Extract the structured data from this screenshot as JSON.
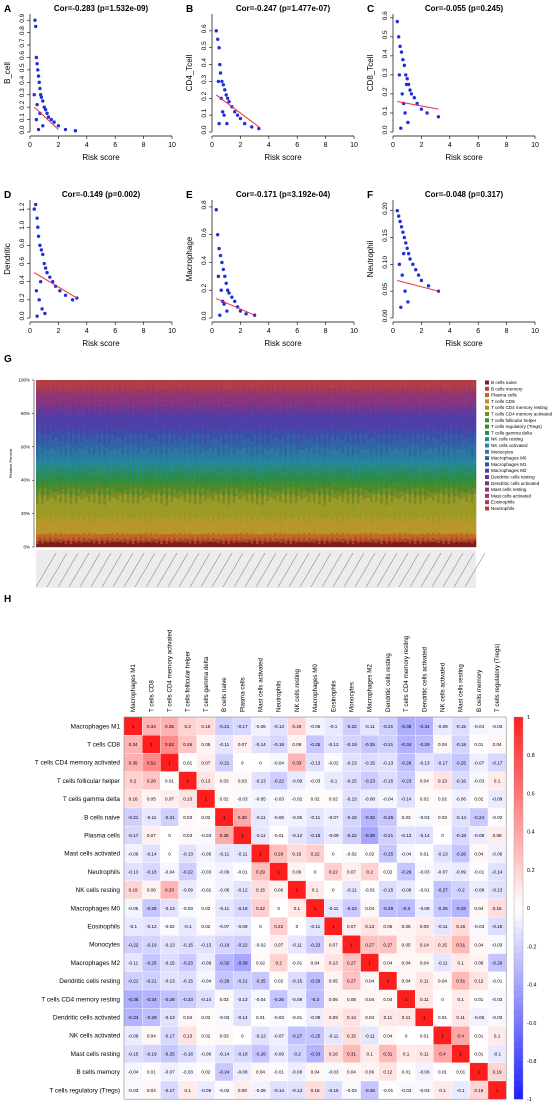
{
  "chart_data": [
    {
      "type": "scatter",
      "panel": "A",
      "title": "Cor=-0.283 (p=1.532e-09)",
      "xlabel": "Risk score",
      "ylabel": "B_cell",
      "xlim": [
        0,
        10
      ],
      "ylim": [
        0,
        0.95
      ],
      "xticks": [
        "0",
        "2",
        "4",
        "6",
        "8",
        "10"
      ],
      "yticks": [
        "0.0",
        "0.1",
        "0.2",
        "0.3",
        "0.4",
        "0.5",
        "0.6",
        "0.7",
        "0.8",
        "0.9"
      ],
      "points": {
        "x": [
          0.35,
          0.4,
          0.45,
          0.5,
          0.55,
          0.6,
          0.65,
          0.7,
          0.75,
          0.8,
          0.9,
          1.0,
          1.1,
          1.2,
          1.3,
          1.5,
          1.7,
          2.0,
          2.5,
          3.2,
          0.3,
          0.5,
          0.7,
          0.9,
          0.45,
          0.6
        ],
        "y": [
          0.9,
          0.85,
          0.6,
          0.55,
          0.5,
          0.45,
          0.4,
          0.35,
          0.3,
          0.28,
          0.25,
          0.2,
          0.18,
          0.15,
          0.12,
          0.1,
          0.08,
          0.05,
          0.02,
          0.01,
          0.3,
          0.22,
          0.15,
          0.05,
          0.1,
          0.02
        ]
      },
      "trend": {
        "x": [
          0.3,
          2.0
        ],
        "y": [
          0.2,
          0.02
        ]
      }
    },
    {
      "type": "scatter",
      "panel": "B",
      "title": "Cor=-0.247 (p=1.477e-07)",
      "xlabel": "Risk score",
      "ylabel": "CD4_Tcell",
      "xlim": [
        0,
        10
      ],
      "ylim": [
        0,
        0.7
      ],
      "xticks": [
        "0",
        "2",
        "4",
        "6",
        "8",
        "10"
      ],
      "yticks": [
        "0.0",
        "0.1",
        "0.2",
        "0.3",
        "0.4",
        "0.5",
        "0.6"
      ],
      "points": {
        "x": [
          0.3,
          0.4,
          0.5,
          0.55,
          0.6,
          0.7,
          0.8,
          0.9,
          1.0,
          1.1,
          1.2,
          1.4,
          1.6,
          1.8,
          2.0,
          2.3,
          2.8,
          3.3,
          0.45,
          0.65,
          0.85,
          1.05,
          0.5,
          0.75
        ],
        "y": [
          0.6,
          0.55,
          0.5,
          0.4,
          0.35,
          0.3,
          0.28,
          0.25,
          0.22,
          0.2,
          0.18,
          0.15,
          0.12,
          0.1,
          0.08,
          0.05,
          0.03,
          0.02,
          0.3,
          0.2,
          0.1,
          0.05,
          0.05,
          0.12
        ]
      },
      "trend": {
        "x": [
          0.3,
          3.3
        ],
        "y": [
          0.22,
          0.03
        ]
      }
    },
    {
      "type": "scatter",
      "panel": "C",
      "title": "Cor=-0.055 (p=0.245)",
      "xlabel": "Risk score",
      "ylabel": "CD8_Tcell",
      "xlim": [
        0,
        10
      ],
      "ylim": [
        0,
        0.62
      ],
      "xticks": [
        "0",
        "2",
        "4",
        "6",
        "8",
        "10"
      ],
      "yticks": [
        "0.0",
        "0.1",
        "0.2",
        "0.3",
        "0.4",
        "0.5",
        "0.6"
      ],
      "points": {
        "x": [
          0.3,
          0.4,
          0.5,
          0.6,
          0.7,
          0.8,
          0.9,
          1.0,
          1.1,
          1.2,
          1.3,
          1.5,
          1.7,
          2.0,
          2.4,
          3.2,
          0.45,
          0.65,
          0.85,
          1.05,
          0.55,
          0.75,
          0.95
        ],
        "y": [
          0.58,
          0.5,
          0.45,
          0.42,
          0.38,
          0.35,
          0.3,
          0.28,
          0.25,
          0.22,
          0.2,
          0.18,
          0.15,
          0.12,
          0.1,
          0.08,
          0.3,
          0.2,
          0.1,
          0.05,
          0.02,
          0.15,
          0.25
        ]
      },
      "trend": {
        "x": [
          0.3,
          3.2
        ],
        "y": [
          0.16,
          0.12
        ]
      }
    },
    {
      "type": "scatter",
      "panel": "D",
      "title": "Cor=-0.149 (p=0.002)",
      "xlabel": "Risk score",
      "ylabel": "Dendritic",
      "xlim": [
        0,
        10
      ],
      "ylim": [
        0,
        1.3
      ],
      "xticks": [
        "0",
        "2",
        "4",
        "6",
        "8",
        "10"
      ],
      "yticks": [
        "0.0",
        "0.2",
        "0.4",
        "0.6",
        "0.8",
        "1.0",
        "1.2"
      ],
      "points": {
        "x": [
          0.3,
          0.4,
          0.5,
          0.55,
          0.6,
          0.7,
          0.8,
          0.9,
          1.0,
          1.1,
          1.2,
          1.4,
          1.6,
          1.8,
          2.1,
          2.5,
          3.0,
          3.3,
          0.45,
          0.65,
          0.85,
          1.05,
          0.5,
          0.75
        ],
        "y": [
          1.2,
          1.25,
          1.1,
          1.0,
          0.9,
          0.8,
          0.75,
          0.7,
          0.6,
          0.55,
          0.5,
          0.45,
          0.4,
          0.35,
          0.3,
          0.25,
          0.2,
          0.22,
          0.3,
          0.2,
          0.1,
          0.05,
          0.02,
          0.4
        ]
      },
      "trend": {
        "x": [
          0.3,
          3.3
        ],
        "y": [
          0.5,
          0.22
        ]
      }
    },
    {
      "type": "scatter",
      "panel": "E",
      "title": "Cor=-0.171 (p=3.192e-04)",
      "xlabel": "Risk score",
      "ylabel": "Macrophage",
      "xlim": [
        0,
        10
      ],
      "ylim": [
        0,
        0.85
      ],
      "xticks": [
        "0",
        "2",
        "4",
        "6",
        "8",
        "10"
      ],
      "yticks": [
        "0.0",
        "0.2",
        "0.4",
        "0.6",
        "0.8"
      ],
      "points": {
        "x": [
          0.3,
          0.4,
          0.5,
          0.6,
          0.7,
          0.8,
          0.9,
          1.0,
          1.1,
          1.2,
          1.4,
          1.6,
          1.8,
          2.0,
          2.4,
          3.0,
          0.45,
          0.65,
          0.85,
          1.05,
          0.55,
          0.75
        ],
        "y": [
          0.78,
          0.6,
          0.5,
          0.45,
          0.4,
          0.35,
          0.3,
          0.25,
          0.2,
          0.18,
          0.15,
          0.12,
          0.08,
          0.05,
          0.03,
          0.02,
          0.3,
          0.2,
          0.1,
          0.05,
          0.02,
          0.12
        ]
      },
      "trend": {
        "x": [
          0.3,
          3.0
        ],
        "y": [
          0.14,
          0.02
        ]
      }
    },
    {
      "type": "scatter",
      "panel": "F",
      "title": "Cor=-0.048 (p=0.317)",
      "xlabel": "Risk score",
      "ylabel": "Neutrophil",
      "xlim": [
        0,
        10
      ],
      "ylim": [
        0,
        0.22
      ],
      "xticks": [
        "0",
        "2",
        "4",
        "6",
        "8",
        "10"
      ],
      "yticks": [
        "0.00",
        "0.05",
        "0.10",
        "0.15",
        "0.20"
      ],
      "points": {
        "x": [
          0.3,
          0.4,
          0.5,
          0.6,
          0.7,
          0.8,
          0.9,
          1.0,
          1.1,
          1.2,
          1.4,
          1.6,
          1.8,
          2.0,
          2.5,
          3.2,
          0.45,
          0.65,
          0.85,
          1.05,
          0.55,
          0.75
        ],
        "y": [
          0.2,
          0.19,
          0.18,
          0.17,
          0.16,
          0.15,
          0.14,
          0.13,
          0.12,
          0.11,
          0.1,
          0.09,
          0.08,
          0.07,
          0.06,
          0.05,
          0.1,
          0.08,
          0.05,
          0.03,
          0.02,
          0.12
        ]
      },
      "trend": {
        "x": [
          0.3,
          3.2
        ],
        "y": [
          0.07,
          0.05
        ]
      }
    },
    {
      "type": "area",
      "panel": "G",
      "ylabel": "Relative Percent",
      "ylim": [
        0,
        100
      ],
      "yticks": [
        "0%",
        "20%",
        "40%",
        "60%",
        "80%",
        "100%"
      ],
      "legend": "right",
      "series": [
        {
          "name": "B cells naive",
          "color": "#7b1e1e",
          "share": 3
        },
        {
          "name": "B cells memory",
          "color": "#b2442a",
          "share": 2
        },
        {
          "name": "Plasma cells",
          "color": "#c06a20",
          "share": 3
        },
        {
          "name": "T cells CD8",
          "color": "#b8962a",
          "share": 9
        },
        {
          "name": "T cells CD4 memory resting",
          "color": "#9c9a26",
          "share": 12
        },
        {
          "name": "T cells CD4 memory activated",
          "color": "#7a8c24",
          "share": 4
        },
        {
          "name": "T cells follicular helper",
          "color": "#4e8a2a",
          "share": 5
        },
        {
          "name": "T cells regulatory (Tregs)",
          "color": "#2f8c3c",
          "share": 4
        },
        {
          "name": "T cells gamma delta",
          "color": "#2a8a5a",
          "share": 3
        },
        {
          "name": "NK cells resting",
          "color": "#268a7a",
          "share": 4
        },
        {
          "name": "NK cells activated",
          "color": "#24879a",
          "share": 3
        },
        {
          "name": "Monocytes",
          "color": "#2a7aa0",
          "share": 6
        },
        {
          "name": "Macrophages M0",
          "color": "#3064a6",
          "share": 7
        },
        {
          "name": "Macrophages M1",
          "color": "#3c4ea8",
          "share": 5
        },
        {
          "name": "Macrophages M2",
          "color": "#4e3ea6",
          "share": 10
        },
        {
          "name": "Dendritic cells resting",
          "color": "#663898",
          "share": 3
        },
        {
          "name": "Dendritic cells activated",
          "color": "#7a348c",
          "share": 3
        },
        {
          "name": "Mast cells resting",
          "color": "#8c3478",
          "share": 6
        },
        {
          "name": "Mast cells activated",
          "color": "#9c3464",
          "share": 2
        },
        {
          "name": "Eosinophils",
          "color": "#a83a54",
          "share": 2
        },
        {
          "name": "Neutrophils",
          "color": "#b23e44",
          "share": 4
        }
      ]
    },
    {
      "type": "heatmap",
      "panel": "H",
      "labels": [
        "Macrophages M1",
        "T cells CD8",
        "T cells CD4 memory activated",
        "T cells follicular helper",
        "T cells gamma delta",
        "B cells naive",
        "Plasma cells",
        "Mast cells activated",
        "Neutrophils",
        "NK cells resting",
        "Macrophages M0",
        "Eosinophils",
        "Monocytes",
        "Macrophages M2",
        "Dendritic cells resting",
        "T cells CD4 memory resting",
        "Dendritic cells activated",
        "NK cells activated",
        "Mast cells resting",
        "B cells memory",
        "T cells regulatory (Tregs)"
      ],
      "colorbar_ticks": [
        "1",
        "0.8",
        "0.6",
        "0.4",
        "0.2",
        "0",
        "-0.2",
        "-0.4",
        "-0.6",
        "-0.8",
        "-1"
      ],
      "colorbar_values": [
        1,
        0.8,
        0.6,
        0.4,
        0.2,
        0,
        -0.2,
        -0.4,
        -0.6,
        -0.8,
        -1
      ],
      "matrix": [
        [
          1,
          0.34,
          0.35,
          0.2,
          0.16,
          -0.21,
          -0.17,
          -0.06,
          -0.13,
          0.19,
          -0.05,
          -0.1,
          -0.22,
          -0.11,
          -0.21,
          -0.36,
          -0.34,
          -0.09,
          -0.15,
          -0.04,
          -0.03
        ],
        [
          0.34,
          1,
          0.52,
          0.26,
          0.05,
          -0.11,
          0.07,
          -0.14,
          -0.18,
          0.06,
          -0.25,
          -0.12,
          -0.19,
          -0.25,
          -0.21,
          -0.34,
          -0.29,
          0.04,
          -0.19,
          0.01,
          0.04
        ],
        [
          0.35,
          0.52,
          1,
          0.01,
          0.07,
          -0.21,
          0,
          0,
          -0.04,
          0.33,
          -0.13,
          -0.02,
          -0.13,
          -0.15,
          -0.13,
          -0.28,
          -0.13,
          -0.17,
          -0.25,
          -0.07,
          -0.17
        ],
        [
          0.2,
          0.26,
          0.01,
          1,
          0.13,
          0.03,
          0.03,
          -0.13,
          -0.22,
          -0.09,
          -0.03,
          -0.1,
          -0.15,
          -0.23,
          -0.15,
          -0.23,
          0.04,
          0.13,
          -0.16,
          -0.03,
          0.1
        ],
        [
          0.16,
          0.05,
          0.07,
          0.13,
          1,
          0.02,
          -0.03,
          -0.05,
          -0.03,
          -0.02,
          0.02,
          0.02,
          -0.13,
          -0.08,
          -0.04,
          -0.14,
          0.02,
          0.02,
          -0.06,
          0.02,
          -0.09
        ],
        [
          -0.21,
          -0.11,
          -0.21,
          0.03,
          0.02,
          1,
          0.38,
          -0.11,
          -0.06,
          -0.06,
          -0.11,
          -0.07,
          -0.19,
          -0.32,
          -0.26,
          0.03,
          -0.03,
          0.03,
          -0.14,
          -0.24,
          -0.02
        ],
        [
          -0.17,
          0.07,
          0,
          0.03,
          -0.03,
          0.38,
          1,
          -0.11,
          -0.01,
          -0.12,
          -0.18,
          -0.09,
          -0.22,
          -0.39,
          -0.21,
          -0.13,
          -0.14,
          0,
          -0.18,
          -0.08,
          0.08
        ],
        [
          -0.06,
          -0.14,
          0,
          -0.13,
          -0.05,
          -0.11,
          -0.11,
          1,
          0.29,
          0.15,
          0.22,
          0,
          -0.02,
          0.02,
          -0.25,
          -0.04,
          0.01,
          -0.13,
          -0.26,
          0.04,
          -0.06
        ],
        [
          -0.13,
          -0.18,
          -0.04,
          -0.22,
          -0.03,
          -0.06,
          -0.01,
          0.29,
          1,
          0.06,
          0,
          0.22,
          0.07,
          0.2,
          0.02,
          -0.26,
          -0.03,
          -0.07,
          -0.09,
          -0.01,
          -0.14
        ],
        [
          0.19,
          0.06,
          0.33,
          -0.09,
          -0.02,
          -0.06,
          -0.12,
          0.15,
          0.06,
          1,
          0.1,
          0,
          -0.11,
          -0.01,
          -0.15,
          -0.09,
          -0.01,
          -0.27,
          -0.2,
          -0.08,
          -0.13
        ],
        [
          -0.05,
          -0.25,
          -0.13,
          -0.03,
          0.02,
          -0.11,
          -0.18,
          0.22,
          0,
          0.1,
          1,
          -0.11,
          -0.23,
          0.04,
          -0.29,
          -0.3,
          -0.08,
          -0.25,
          -0.33,
          0.04,
          0.15
        ],
        [
          -0.1,
          -0.12,
          -0.02,
          -0.1,
          0.02,
          -0.07,
          -0.09,
          0,
          0.22,
          0,
          -0.11,
          1,
          0.07,
          0.13,
          0.05,
          0.06,
          0.09,
          -0.11,
          0.16,
          -0.03,
          -0.15
        ],
        [
          -0.22,
          -0.19,
          -0.13,
          -0.15,
          -0.13,
          -0.19,
          -0.22,
          -0.02,
          0.07,
          -0.11,
          -0.23,
          0.07,
          1,
          0.27,
          0.27,
          0.05,
          0.14,
          0.15,
          0.31,
          0.04,
          -0.03
        ],
        [
          -0.11,
          -0.25,
          -0.15,
          -0.23,
          -0.08,
          -0.32,
          -0.39,
          0.02,
          0.2,
          -0.01,
          0.04,
          0.13,
          0.27,
          1,
          0.04,
          0.04,
          0.04,
          -0.11,
          0.1,
          0.06,
          -0.26
        ],
        [
          -0.21,
          -0.21,
          -0.13,
          -0.15,
          -0.04,
          -0.26,
          -0.21,
          -0.25,
          0.02,
          -0.15,
          -0.29,
          0.05,
          0.27,
          0.04,
          1,
          0.04,
          0.11,
          0.04,
          0.31,
          0.12,
          -0.01
        ],
        [
          -0.36,
          -0.34,
          -0.28,
          -0.23,
          -0.14,
          0.03,
          -0.13,
          -0.04,
          -0.26,
          -0.09,
          -0.3,
          0.06,
          0.05,
          0.04,
          0.04,
          1,
          0.11,
          0,
          0.1,
          0.01,
          -0.03
        ],
        [
          -0.34,
          -0.29,
          -0.13,
          0.04,
          0.02,
          -0.03,
          -0.14,
          0.01,
          -0.03,
          -0.01,
          -0.08,
          0.09,
          0.14,
          0.04,
          0.11,
          0.11,
          1,
          0.01,
          0.11,
          -0.06,
          -0.03
        ],
        [
          -0.09,
          0.04,
          -0.17,
          0.13,
          0.02,
          0.03,
          0,
          -0.13,
          -0.07,
          -0.27,
          -0.25,
          -0.11,
          0.15,
          -0.11,
          0.04,
          0,
          0.01,
          1,
          0.4,
          0.01,
          0.1
        ],
        [
          -0.15,
          -0.19,
          -0.25,
          -0.16,
          -0.06,
          -0.14,
          -0.18,
          -0.26,
          -0.09,
          -0.2,
          -0.33,
          0.16,
          0.31,
          0.1,
          0.31,
          0.1,
          0.11,
          0.4,
          1,
          0.01,
          -0.1
        ],
        [
          -0.04,
          0.01,
          -0.07,
          -0.03,
          0.02,
          -0.24,
          -0.08,
          0.04,
          -0.01,
          -0.08,
          0.04,
          -0.03,
          0.04,
          0.06,
          0.12,
          0.01,
          -0.06,
          0.01,
          0.01,
          1,
          0.19
        ],
        [
          -0.03,
          0.04,
          -0.17,
          0.1,
          -0.09,
          -0.02,
          0.08,
          -0.06,
          -0.14,
          -0.13,
          0.15,
          -0.15,
          -0.03,
          -0.26,
          -0.01,
          -0.03,
          -0.03,
          0.1,
          -0.1,
          0.19,
          1
        ]
      ]
    }
  ]
}
